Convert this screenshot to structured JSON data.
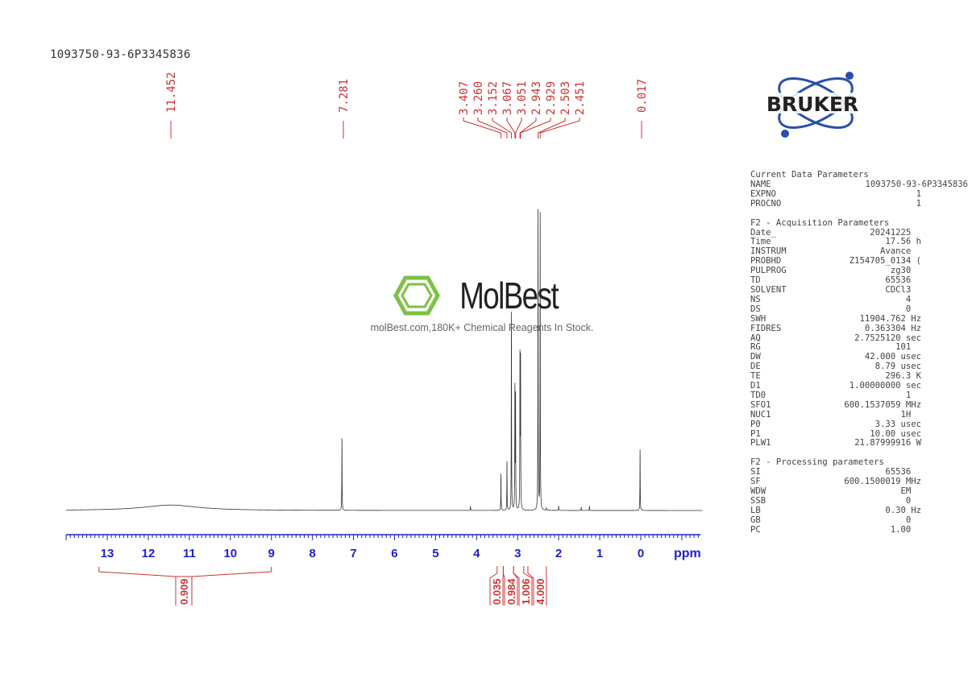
{
  "header": {
    "sample_name": "1093750-93-6P3345836"
  },
  "logo": {
    "brand": "BRUKER",
    "brand_color": "#2b4fa8"
  },
  "watermark": {
    "name": "MolBest",
    "tagline": "molBest.com,180K+ Chemical Reagents In Stock.",
    "color": "#7dc242"
  },
  "parameters": [
    {
      "heading": "Current Data Parameters",
      "rows": [
        [
          "NAME",
          "1093750-93-6P3345836"
        ],
        [
          "EXPNO",
          "1"
        ],
        [
          "PROCNO",
          "1"
        ]
      ]
    },
    {
      "heading": "F2 - Acquisition Parameters",
      "rows": [
        [
          "Date_",
          "20241225  "
        ],
        [
          "Time",
          "17.56 h"
        ],
        [
          "INSTRUM",
          "Avance  "
        ],
        [
          "PROBHD",
          "Z154705_0134 ("
        ],
        [
          "PULPROG",
          "zg30  "
        ],
        [
          "TD",
          "65536  "
        ],
        [
          "SOLVENT",
          "CDCl3  "
        ],
        [
          "NS",
          "4  "
        ],
        [
          "DS",
          "0  "
        ],
        [
          "SWH",
          "11904.762 Hz"
        ],
        [
          "FIDRES",
          "0.363304 Hz"
        ],
        [
          "AQ",
          "2.7525120 sec"
        ],
        [
          "RG",
          "101  "
        ],
        [
          "DW",
          "42.000 usec"
        ],
        [
          "DE",
          "8.79 usec"
        ],
        [
          "TE",
          "296.3 K"
        ],
        [
          "D1",
          "1.00000000 sec"
        ],
        [
          "TD0",
          "1  "
        ],
        [
          "SFO1",
          "600.1537059 MHz"
        ],
        [
          "NUC1",
          "1H  "
        ],
        [
          "P0",
          "3.33 usec"
        ],
        [
          "P1",
          "10.00 usec"
        ],
        [
          "PLW1",
          "21.87999916 W"
        ]
      ]
    },
    {
      "heading": "F2 - Processing parameters",
      "rows": [
        [
          "SI",
          "65536  "
        ],
        [
          "SF",
          "600.1500019 MHz"
        ],
        [
          "WDW",
          "EM  "
        ],
        [
          "SSB",
          "0  "
        ],
        [
          "LB",
          "0.30 Hz"
        ],
        [
          "GB",
          "0  "
        ],
        [
          "PC",
          "1.00  "
        ]
      ]
    }
  ],
  "chart_data": {
    "type": "line",
    "xlabel": "ppm",
    "xlim": [
      14.0,
      -1.5
    ],
    "x_reversed": true,
    "x_ticks": [
      "13",
      "12",
      "11",
      "10",
      "9",
      "8",
      "7",
      "6",
      "5",
      "4",
      "3",
      "2",
      "1",
      "0"
    ],
    "grid": false,
    "peaks": [
      {
        "ppm": 11.452,
        "intensity": 0.018,
        "width": 0.8
      },
      {
        "ppm": 7.281,
        "intensity": 0.24,
        "width": 0.004
      },
      {
        "ppm": 4.15,
        "intensity": 0.013,
        "width": 0.006
      },
      {
        "ppm": 3.407,
        "intensity": 0.12,
        "width": 0.004
      },
      {
        "ppm": 3.26,
        "intensity": 0.16,
        "width": 0.004
      },
      {
        "ppm": 3.152,
        "intensity": 0.65,
        "width": 0.004
      },
      {
        "ppm": 3.067,
        "intensity": 0.4,
        "width": 0.004
      },
      {
        "ppm": 3.051,
        "intensity": 0.37,
        "width": 0.004
      },
      {
        "ppm": 2.943,
        "intensity": 0.5,
        "width": 0.004
      },
      {
        "ppm": 2.929,
        "intensity": 0.49,
        "width": 0.004
      },
      {
        "ppm": 2.503,
        "intensity": 1.0,
        "width": 0.004
      },
      {
        "ppm": 2.451,
        "intensity": 0.99,
        "width": 0.004
      },
      {
        "ppm": 2.3,
        "intensity": 0.008,
        "width": 0.006
      },
      {
        "ppm": 2.0,
        "intensity": 0.013,
        "width": 0.006
      },
      {
        "ppm": 1.45,
        "intensity": 0.01,
        "width": 0.006
      },
      {
        "ppm": 1.25,
        "intensity": 0.013,
        "width": 0.006
      },
      {
        "ppm": 0.017,
        "intensity": 0.2,
        "width": 0.004
      }
    ],
    "peak_labels": [
      "11.452",
      "7.281",
      "3.407",
      "3.260",
      "3.152",
      "3.067",
      "3.051",
      "2.943",
      "2.929",
      "2.503",
      "2.451",
      "0.017"
    ],
    "integrals": [
      {
        "from": 13.2,
        "to": 9.0,
        "value": "0.909"
      },
      {
        "from": 3.5,
        "to": 3.35,
        "value": "0.035"
      },
      {
        "from": 3.35,
        "to": 3.1,
        "value": "0.984"
      },
      {
        "from": 3.1,
        "to": 2.85,
        "value": "1.006"
      },
      {
        "from": 2.75,
        "to": 2.3,
        "value": "4.000"
      }
    ],
    "colors": {
      "spectrum": "#333333",
      "labels": "#cc3333",
      "axis": "#1f22c8"
    }
  }
}
